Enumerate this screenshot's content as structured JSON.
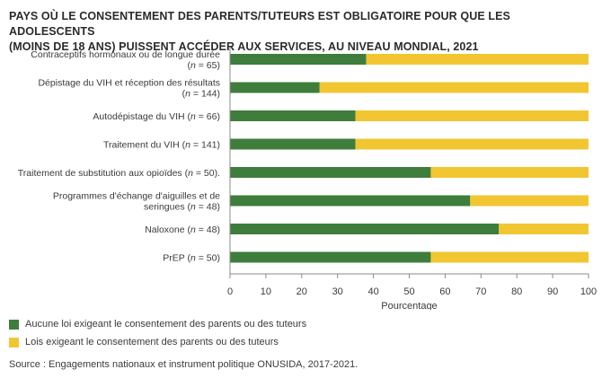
{
  "title_line1": "PAYS OÙ LE CONSENTEMENT DES PARENTS/TUTEURS EST OBLIGATOIRE POUR QUE LES ADOLESCENTS",
  "title_line2": "(MOINS DE 18 ANS) PUISSENT ACCÉDER AUX SERVICES, AU NIVEAU MONDIAL, 2021",
  "source": "Source : Engagements nationaux et instrument politique ONUSIDA, 2017-2021.",
  "colors": {
    "green": "#3f7d3c",
    "yellow": "#f2c631",
    "axis": "#8a8a8a"
  },
  "chart_data": {
    "type": "bar",
    "orientation": "horizontal",
    "stacked": true,
    "categories": [
      {
        "lines": [
          "Contraceptifs hormonaux ou de longue durée"
        ],
        "n_prefix": "(",
        "n_label": "n",
        "n_suffix": " = 65)"
      },
      {
        "lines": [
          "Dépistage du VIH et réception des résultats"
        ],
        "n_prefix": "(",
        "n_label": "n",
        "n_suffix": " = 144)"
      },
      {
        "lines": [
          "Autodépistage du VIH"
        ],
        "n_prefix": " (",
        "n_label": "n",
        "n_suffix": " = 66)",
        "inline": true
      },
      {
        "lines": [
          "Traitement du VIH"
        ],
        "n_prefix": " (",
        "n_label": "n",
        "n_suffix": " = 141)",
        "inline": true
      },
      {
        "lines": [
          "Traitement de substitution aux opioïdes"
        ],
        "n_prefix": " (",
        "n_label": "n",
        "n_suffix": " = 50).",
        "inline": true
      },
      {
        "lines": [
          "Programmes d'échange d'aiguilles et de",
          "seringues"
        ],
        "n_prefix": " (",
        "n_label": "n",
        "n_suffix": " = 48)"
      },
      {
        "lines": [
          "Naloxone"
        ],
        "n_prefix": " (",
        "n_label": "n",
        "n_suffix": " = 48)",
        "inline": true
      },
      {
        "lines": [
          "PrEP"
        ],
        "n_prefix": " (",
        "n_label": "n",
        "n_suffix": " = 50)",
        "inline": true
      }
    ],
    "series": [
      {
        "name": "Aucune loi exigeant le consentement des parents ou des tuteurs",
        "color": "#3f7d3c",
        "values": [
          38,
          25,
          35,
          35,
          56,
          67,
          75,
          56
        ]
      },
      {
        "name": "Lois exigeant le consentement des parents ou des tuteurs",
        "color": "#f2c631",
        "values": [
          62,
          75,
          65,
          65,
          44,
          33,
          25,
          44
        ]
      }
    ],
    "xlabel": "Pourcentage",
    "xlim": [
      0,
      100
    ],
    "xticks": [
      0,
      10,
      20,
      30,
      40,
      50,
      60,
      70,
      80,
      90,
      100
    ],
    "grid": false,
    "legend": "bottom-left"
  }
}
